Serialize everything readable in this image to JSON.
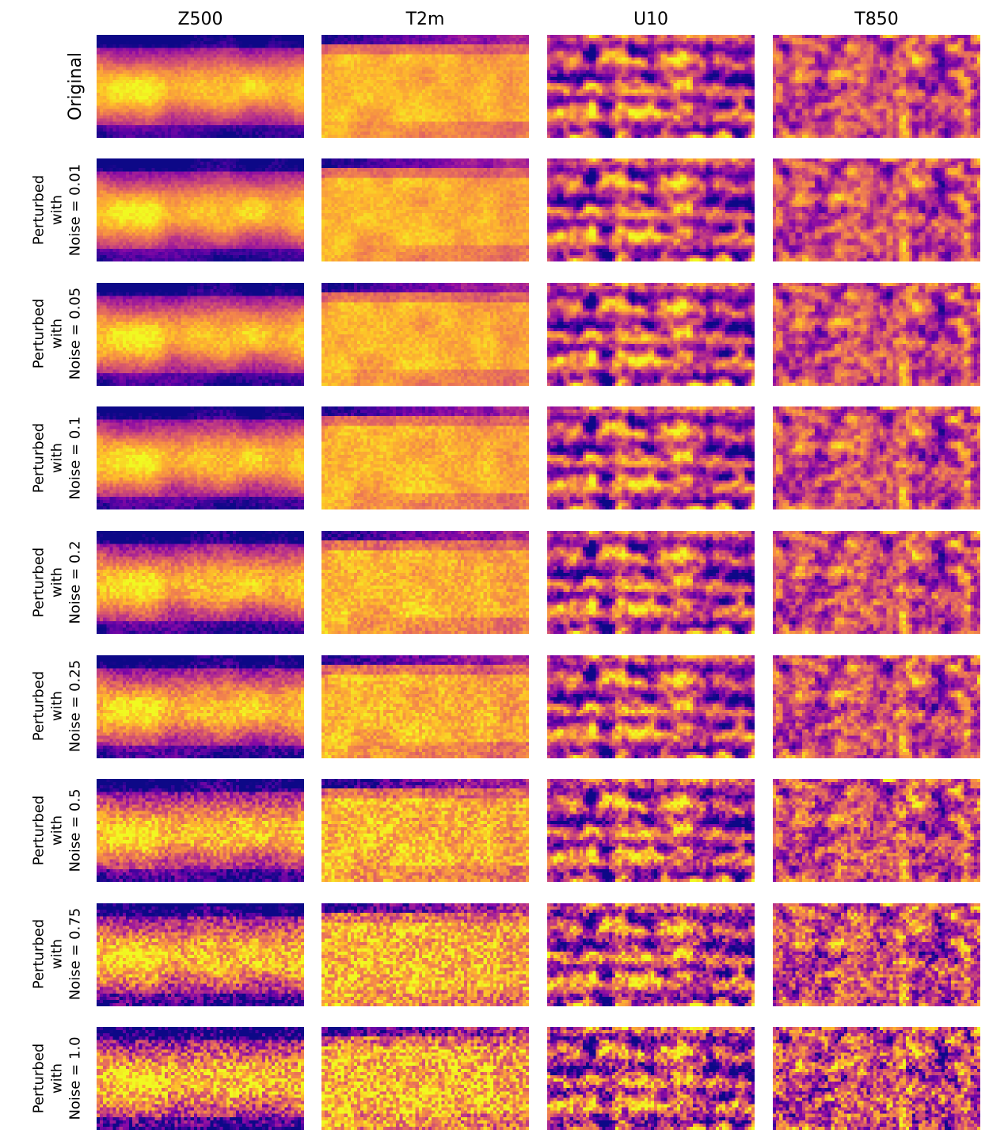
{
  "figure": {
    "columns": [
      {
        "title": "Z500",
        "variable": "Z500"
      },
      {
        "title": "T2m",
        "variable": "T2m"
      },
      {
        "title": "U10",
        "variable": "U10"
      },
      {
        "title": "T850",
        "variable": "T850"
      }
    ],
    "rows": [
      {
        "line1": "Original",
        "line2": "",
        "line3": "",
        "noise": 0
      },
      {
        "line1": "Perturbed",
        "line2": "with",
        "line3": "Noise = 0.01",
        "noise": 0.01
      },
      {
        "line1": "Perturbed",
        "line2": "with",
        "line3": "Noise = 0.05",
        "noise": 0.05
      },
      {
        "line1": "Perturbed",
        "line2": "with",
        "line3": "Noise = 0.1",
        "noise": 0.1
      },
      {
        "line1": "Perturbed",
        "line2": "with",
        "line3": "Noise = 0.2",
        "noise": 0.2
      },
      {
        "line1": "Perturbed",
        "line2": "with",
        "line3": "Noise = 0.25",
        "noise": 0.25
      },
      {
        "line1": "Perturbed",
        "line2": "with",
        "line3": "Noise = 0.5",
        "noise": 0.5
      },
      {
        "line1": "Perturbed",
        "line2": "with",
        "line3": "Noise = 0.75",
        "noise": 0.75
      },
      {
        "line1": "Perturbed",
        "line2": "with",
        "line3": "Noise = 1.0",
        "noise": 1.0
      }
    ],
    "colormap": "plasma",
    "colormap_stops": [
      "#0d0887",
      "#5302a3",
      "#8b0aa5",
      "#b83289",
      "#db5c68",
      "#f48849",
      "#febd2a",
      "#f0f921"
    ]
  }
}
